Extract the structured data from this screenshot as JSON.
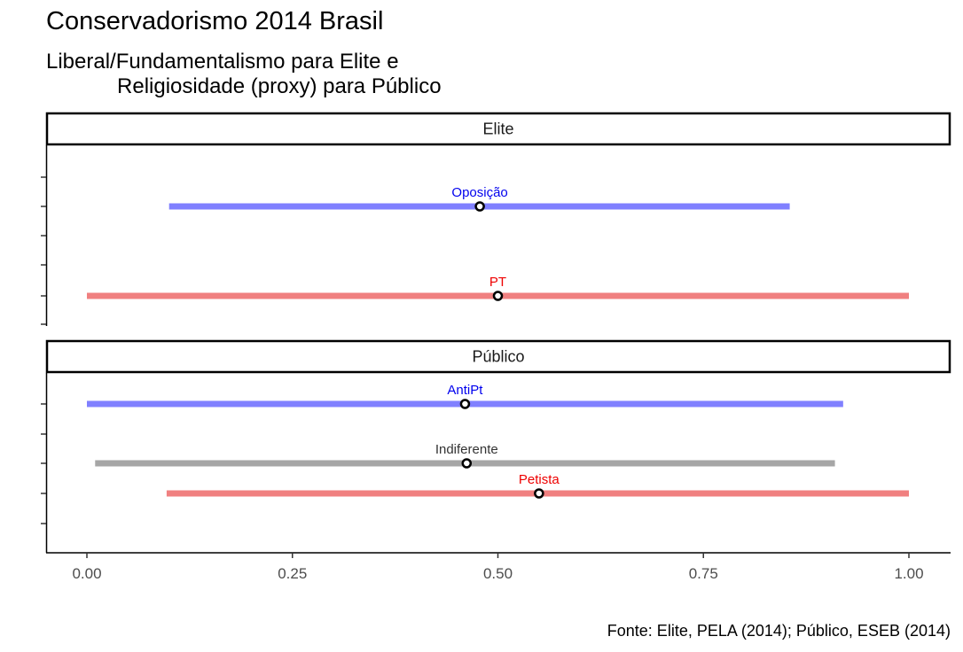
{
  "title": "Conservadorismo 2014 Brasil",
  "subtitle": "Liberal/Fundamentalismo para Elite e\n            Religiosidade (proxy) para Público",
  "caption": "Fonte: Elite, PELA (2014); Público, ESEB (2014)",
  "colors": {
    "blue_range": "#8080ff",
    "blue_label": "#0000ee",
    "red_range": "#f08080",
    "red_label": "#ee0000",
    "gray_range": "#a6a6a6",
    "gray_label": "#333333"
  },
  "chart_data": {
    "type": "range-dot",
    "xlim": [
      0,
      1
    ],
    "x_ticks": [
      "0.00",
      "0.25",
      "0.50",
      "0.75",
      "1.00"
    ],
    "x_tick_values": [
      0,
      0.25,
      0.5,
      0.75,
      1.0
    ],
    "grid": false,
    "panels": [
      {
        "name": "Elite",
        "rows": [
          {
            "label": "Oposição",
            "min": 0.1,
            "max": 0.855,
            "mean": 0.478,
            "color_key": "blue"
          },
          {
            "label": "PT",
            "min": 0.0,
            "max": 1.0,
            "mean": 0.5,
            "color_key": "red"
          }
        ]
      },
      {
        "name": "Público",
        "rows": [
          {
            "label": "AntiPt",
            "min": 0.0,
            "max": 0.92,
            "mean": 0.46,
            "color_key": "blue"
          },
          {
            "label": "Indiferente",
            "min": 0.01,
            "max": 0.91,
            "mean": 0.462,
            "color_key": "gray"
          },
          {
            "label": "Petista",
            "min": 0.097,
            "max": 1.0,
            "mean": 0.55,
            "color_key": "red"
          }
        ]
      }
    ]
  }
}
